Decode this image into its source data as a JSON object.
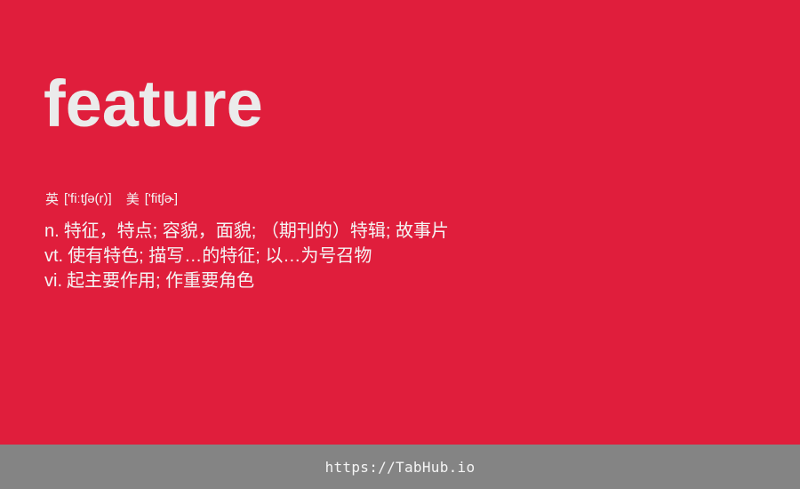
{
  "entry": {
    "word": "feature",
    "phonetics": {
      "uk_label": "英",
      "uk": "['fiːtʃə(r)]",
      "us_label": "美",
      "us": "['fitʃɚ]"
    },
    "definitions": [
      {
        "pos": "n.",
        "meaning": "特征，特点; 容貌，面貌; （期刊的）特辑; 故事片"
      },
      {
        "pos": "vt.",
        "meaning": "使有特色; 描写…的特征; 以…为号召物"
      },
      {
        "pos": "vi.",
        "meaning": "起主要作用; 作重要角色"
      }
    ]
  },
  "footer": {
    "link_text": "https://TabHub.io"
  },
  "colors": {
    "background": "#e01e3c",
    "footer_background": "#848484",
    "text": "#ececec"
  }
}
